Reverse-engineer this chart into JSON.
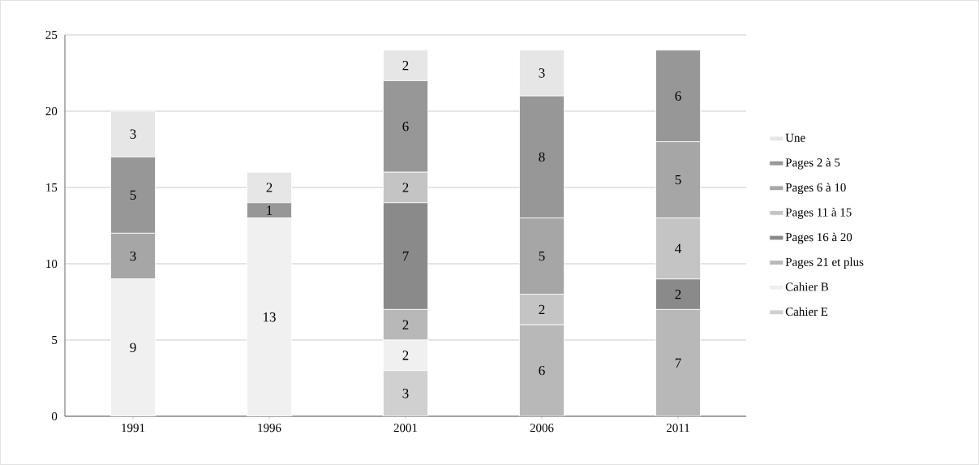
{
  "chart_data": {
    "type": "bar",
    "stacked": true,
    "categories": [
      "1991",
      "1996",
      "2001",
      "2006",
      "2011"
    ],
    "series": [
      {
        "name": "Cahier E",
        "color": "#d0d0d0",
        "values": [
          null,
          null,
          3,
          null,
          null
        ]
      },
      {
        "name": "Cahier B",
        "color": "#f0f0f0",
        "values": [
          9,
          13,
          2,
          null,
          null
        ]
      },
      {
        "name": "Pages 21 et plus",
        "color": "#b8b8b8",
        "values": [
          null,
          null,
          2,
          6,
          7
        ]
      },
      {
        "name": "Pages 16 à 20",
        "color": "#8a8a8a",
        "values": [
          null,
          null,
          7,
          null,
          2
        ]
      },
      {
        "name": "Pages 11 à 15",
        "color": "#c4c4c4",
        "values": [
          null,
          null,
          2,
          2,
          4
        ]
      },
      {
        "name": "Pages 6 à 10",
        "color": "#a6a6a6",
        "values": [
          3,
          null,
          null,
          5,
          5
        ]
      },
      {
        "name": "Pages 2 à 5",
        "color": "#979797",
        "values": [
          5,
          1,
          6,
          8,
          6
        ]
      },
      {
        "name": "Une",
        "color": "#e6e6e6",
        "values": [
          3,
          2,
          2,
          3,
          null
        ]
      }
    ],
    "ylim": [
      0,
      25
    ],
    "yticks": [
      0,
      5,
      10,
      15,
      20,
      25
    ],
    "grid": "y",
    "legend": "right",
    "data_labels": true
  }
}
